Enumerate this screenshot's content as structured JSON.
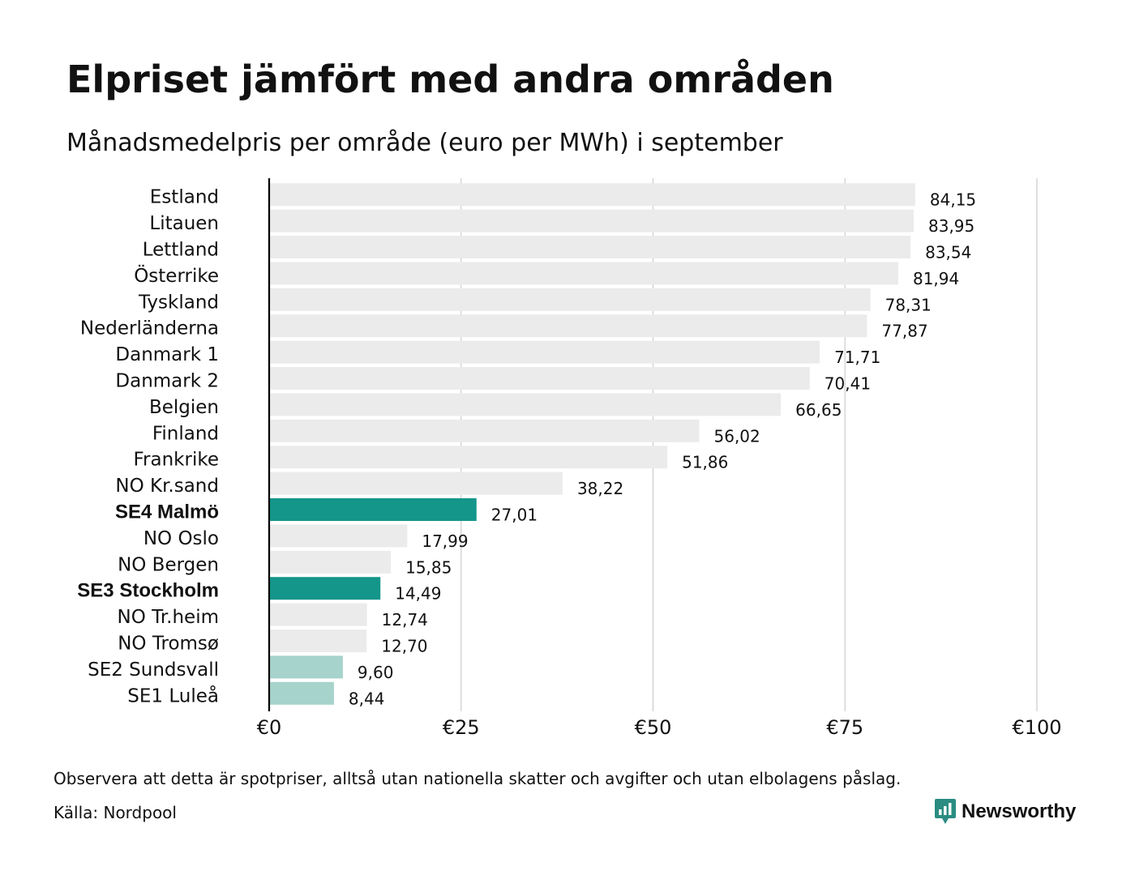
{
  "header": {
    "title": "Elpriset jämfört med andra områden",
    "subtitle": "Månadsmedelpris per område (euro per MWh) i september"
  },
  "footer": {
    "note": "Observera att detta är spotpriser, alltså utan nationella skatter och avgifter och utan elbolagens påslag.",
    "source": "Källa: Nordpool",
    "brand": "Newsworthy",
    "brand_icon": "bar-chart-badge-icon"
  },
  "colors": {
    "default_bar": "#ebebeb",
    "highlight_bar": "#14968a",
    "light_highlight_bar": "#a6d3cb",
    "axis_line": "#000000",
    "grid_line": "#cccccc",
    "brand": "#2b8c82"
  },
  "chart_data": {
    "type": "bar",
    "orientation": "horizontal",
    "title": "Elpriset jämfört med andra områden",
    "subtitle": "Månadsmedelpris per område (euro per MWh) i september",
    "xlabel": "",
    "ylabel": "",
    "xlim": [
      0,
      100
    ],
    "grid": true,
    "x_ticks": [
      0,
      25,
      50,
      75,
      100
    ],
    "x_tick_labels": [
      "€0",
      "€25",
      "€50",
      "€75",
      "€100"
    ],
    "categories": [
      "Estland",
      "Litauen",
      "Lettland",
      "Österrike",
      "Tyskland",
      "Nederländerna",
      "Danmark 1",
      "Danmark 2",
      "Belgien",
      "Finland",
      "Frankrike",
      "NO Kr.sand",
      "SE4 Malmö",
      "NO Oslo",
      "NO Bergen",
      "SE3 Stockholm",
      "NO Tr.heim",
      "NO Tromsø",
      "SE2 Sundsvall",
      "SE1 Luleå"
    ],
    "values": [
      84.15,
      83.95,
      83.54,
      81.94,
      78.31,
      77.87,
      71.71,
      70.41,
      66.65,
      56.02,
      51.86,
      38.22,
      27.01,
      17.99,
      15.85,
      14.49,
      12.74,
      12.7,
      9.6,
      8.44
    ],
    "value_labels": [
      "84,15",
      "83,95",
      "83,54",
      "81,94",
      "78,31",
      "77,87",
      "71,71",
      "70,41",
      "66,65",
      "56,02",
      "51,86",
      "38,22",
      "27,01",
      "17,99",
      "15,85",
      "14,49",
      "12,74",
      "12,70",
      "9,60",
      "8,44"
    ],
    "highlight": [
      "none",
      "none",
      "none",
      "none",
      "none",
      "none",
      "none",
      "none",
      "none",
      "none",
      "none",
      "none",
      "strong",
      "none",
      "none",
      "strong",
      "none",
      "none",
      "light",
      "light"
    ]
  }
}
